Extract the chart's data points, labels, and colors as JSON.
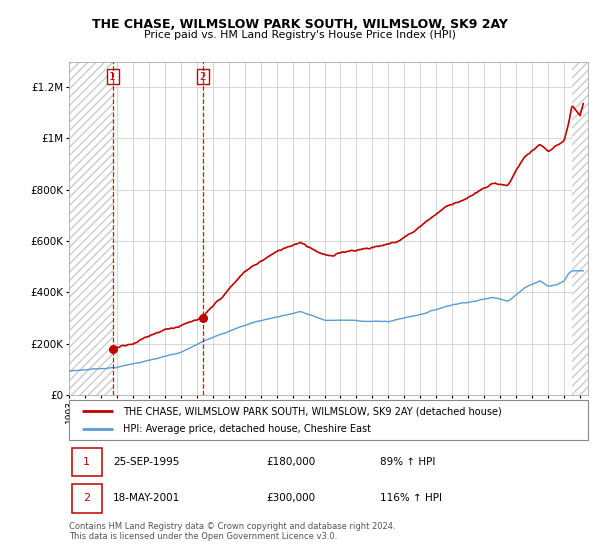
{
  "title": "THE CHASE, WILMSLOW PARK SOUTH, WILMSLOW, SK9 2AY",
  "subtitle": "Price paid vs. HM Land Registry's House Price Index (HPI)",
  "ylabel_ticks": [
    "£0",
    "£200K",
    "£400K",
    "£600K",
    "£800K",
    "£1M",
    "£1.2M"
  ],
  "ytick_values": [
    0,
    200000,
    400000,
    600000,
    800000,
    1000000,
    1200000
  ],
  "ylim": [
    0,
    1300000
  ],
  "xlim_start": 1993.0,
  "xlim_end": 2025.5,
  "hpi_color": "#5b9bd5",
  "price_color": "#c00000",
  "transaction1_x": 1995.73,
  "transaction1_y": 180000,
  "transaction2_x": 2001.38,
  "transaction2_y": 300000,
  "legend_line1": "THE CHASE, WILMSLOW PARK SOUTH, WILMSLOW, SK9 2AY (detached house)",
  "legend_line2": "HPI: Average price, detached house, Cheshire East",
  "table_row1_num": "1",
  "table_row1_date": "25-SEP-1995",
  "table_row1_price": "£180,000",
  "table_row1_hpi": "89% ↑ HPI",
  "table_row2_num": "2",
  "table_row2_date": "18-MAY-2001",
  "table_row2_price": "£300,000",
  "table_row2_hpi": "116% ↑ HPI",
  "footnote": "Contains HM Land Registry data © Crown copyright and database right 2024.\nThis data is licensed under the Open Government Licence v3.0.",
  "hatch_color": "#cccccc",
  "grid_color": "#d0d0d0",
  "hatch_start": 1993.0,
  "hatch_end": 1995.73,
  "hatch2_start": 2024.5,
  "hatch2_end": 2025.5
}
